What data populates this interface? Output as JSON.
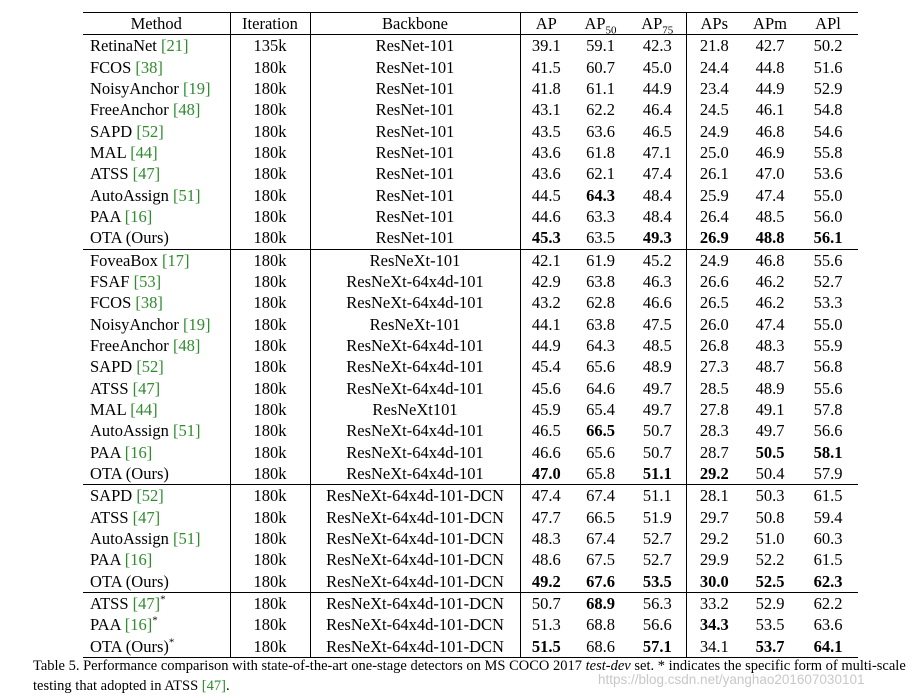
{
  "table": {
    "headers": {
      "method": "Method",
      "iteration": "Iteration",
      "backbone": "Backbone",
      "ap": "AP",
      "ap50_base": "AP",
      "ap50_sub": "50",
      "ap75_base": "AP",
      "ap75_sub": "75",
      "aps": "APs",
      "apm": "APm",
      "apl": "APl"
    },
    "groups": [
      [
        {
          "name": "RetinaNet ",
          "ref": "[21]",
          "star": "",
          "iter": "135k",
          "backbone": "ResNet-101",
          "ap": "39.1",
          "ap50": "59.1",
          "ap75": "42.3",
          "aps": "21.8",
          "apm": "42.7",
          "apl": "50.2",
          "bold": []
        },
        {
          "name": "FCOS ",
          "ref": "[38]",
          "star": "",
          "iter": "180k",
          "backbone": "ResNet-101",
          "ap": "41.5",
          "ap50": "60.7",
          "ap75": "45.0",
          "aps": "24.4",
          "apm": "44.8",
          "apl": "51.6",
          "bold": []
        },
        {
          "name": "NoisyAnchor ",
          "ref": "[19]",
          "star": "",
          "iter": "180k",
          "backbone": "ResNet-101",
          "ap": "41.8",
          "ap50": "61.1",
          "ap75": "44.9",
          "aps": "23.4",
          "apm": "44.9",
          "apl": "52.9",
          "bold": []
        },
        {
          "name": "FreeAnchor ",
          "ref": "[48]",
          "star": "",
          "iter": "180k",
          "backbone": "ResNet-101",
          "ap": "43.1",
          "ap50": "62.2",
          "ap75": "46.4",
          "aps": "24.5",
          "apm": "46.1",
          "apl": "54.8",
          "bold": []
        },
        {
          "name": "SAPD ",
          "ref": "[52]",
          "star": "",
          "iter": "180k",
          "backbone": "ResNet-101",
          "ap": "43.5",
          "ap50": "63.6",
          "ap75": "46.5",
          "aps": "24.9",
          "apm": "46.8",
          "apl": "54.6",
          "bold": []
        },
        {
          "name": "MAL ",
          "ref": "[44]",
          "star": "",
          "iter": "180k",
          "backbone": "ResNet-101",
          "ap": "43.6",
          "ap50": "61.8",
          "ap75": "47.1",
          "aps": "25.0",
          "apm": "46.9",
          "apl": "55.8",
          "bold": []
        },
        {
          "name": "ATSS ",
          "ref": "[47]",
          "star": "",
          "iter": "180k",
          "backbone": "ResNet-101",
          "ap": "43.6",
          "ap50": "62.1",
          "ap75": "47.4",
          "aps": "26.1",
          "apm": "47.0",
          "apl": "53.6",
          "bold": []
        },
        {
          "name": "AutoAssign ",
          "ref": "[51]",
          "star": "",
          "iter": "180k",
          "backbone": "ResNet-101",
          "ap": "44.5",
          "ap50": "64.3",
          "ap75": "48.4",
          "aps": "25.9",
          "apm": "47.4",
          "apl": "55.0",
          "bold": [
            "ap50"
          ]
        },
        {
          "name": "PAA ",
          "ref": "[16]",
          "star": "",
          "iter": "180k",
          "backbone": "ResNet-101",
          "ap": "44.6",
          "ap50": "63.3",
          "ap75": "48.4",
          "aps": "26.4",
          "apm": "48.5",
          "apl": "56.0",
          "bold": []
        },
        {
          "name": "OTA (Ours)",
          "ref": "",
          "star": "",
          "iter": "180k",
          "backbone": "ResNet-101",
          "ap": "45.3",
          "ap50": "63.5",
          "ap75": "49.3",
          "aps": "26.9",
          "apm": "48.8",
          "apl": "56.1",
          "bold": [
            "ap",
            "ap75",
            "aps",
            "apm",
            "apl"
          ]
        }
      ],
      [
        {
          "name": "FoveaBox ",
          "ref": "[17]",
          "star": "",
          "iter": "180k",
          "backbone": "ResNeXt-101",
          "ap": "42.1",
          "ap50": "61.9",
          "ap75": "45.2",
          "aps": "24.9",
          "apm": "46.8",
          "apl": "55.6",
          "bold": []
        },
        {
          "name": "FSAF ",
          "ref": "[53]",
          "star": "",
          "iter": "180k",
          "backbone": "ResNeXt-64x4d-101",
          "ap": "42.9",
          "ap50": "63.8",
          "ap75": "46.3",
          "aps": "26.6",
          "apm": "46.2",
          "apl": "52.7",
          "bold": []
        },
        {
          "name": "FCOS ",
          "ref": "[38]",
          "star": "",
          "iter": "180k",
          "backbone": "ResNeXt-64x4d-101",
          "ap": "43.2",
          "ap50": "62.8",
          "ap75": "46.6",
          "aps": "26.5",
          "apm": "46.2",
          "apl": "53.3",
          "bold": []
        },
        {
          "name": "NoisyAnchor ",
          "ref": "[19]",
          "star": "",
          "iter": "180k",
          "backbone": "ResNeXt-101",
          "ap": "44.1",
          "ap50": "63.8",
          "ap75": "47.5",
          "aps": "26.0",
          "apm": "47.4",
          "apl": "55.0",
          "bold": []
        },
        {
          "name": "FreeAnchor ",
          "ref": "[48]",
          "star": "",
          "iter": "180k",
          "backbone": "ResNeXt-64x4d-101",
          "ap": "44.9",
          "ap50": "64.3",
          "ap75": "48.5",
          "aps": "26.8",
          "apm": "48.3",
          "apl": "55.9",
          "bold": []
        },
        {
          "name": "SAPD ",
          "ref": "[52]",
          "star": "",
          "iter": "180k",
          "backbone": "ResNeXt-64x4d-101",
          "ap": "45.4",
          "ap50": "65.6",
          "ap75": "48.9",
          "aps": "27.3",
          "apm": "48.7",
          "apl": "56.8",
          "bold": []
        },
        {
          "name": "ATSS ",
          "ref": "[47]",
          "star": "",
          "iter": "180k",
          "backbone": "ResNeXt-64x4d-101",
          "ap": "45.6",
          "ap50": "64.6",
          "ap75": "49.7",
          "aps": "28.5",
          "apm": "48.9",
          "apl": "55.6",
          "bold": []
        },
        {
          "name": "MAL ",
          "ref": "[44]",
          "star": "",
          "iter": "180k",
          "backbone": "ResNeXt101",
          "ap": "45.9",
          "ap50": "65.4",
          "ap75": "49.7",
          "aps": "27.8",
          "apm": "49.1",
          "apl": "57.8",
          "bold": []
        },
        {
          "name": "AutoAssign ",
          "ref": "[51]",
          "star": "",
          "iter": "180k",
          "backbone": "ResNeXt-64x4d-101",
          "ap": "46.5",
          "ap50": "66.5",
          "ap75": "50.7",
          "aps": "28.3",
          "apm": "49.7",
          "apl": "56.6",
          "bold": [
            "ap50"
          ]
        },
        {
          "name": "PAA ",
          "ref": "[16]",
          "star": "",
          "iter": "180k",
          "backbone": "ResNeXt-64x4d-101",
          "ap": "46.6",
          "ap50": "65.6",
          "ap75": "50.7",
          "aps": "28.7",
          "apm": "50.5",
          "apl": "58.1",
          "bold": [
            "apm",
            "apl"
          ]
        },
        {
          "name": "OTA (Ours)",
          "ref": "",
          "star": "",
          "iter": "180k",
          "backbone": "ResNeXt-64x4d-101",
          "ap": "47.0",
          "ap50": "65.8",
          "ap75": "51.1",
          "aps": "29.2",
          "apm": "50.4",
          "apl": "57.9",
          "bold": [
            "ap",
            "ap75",
            "aps"
          ]
        }
      ],
      [
        {
          "name": "SAPD ",
          "ref": "[52]",
          "star": "",
          "iter": "180k",
          "backbone": "ResNeXt-64x4d-101-DCN",
          "ap": "47.4",
          "ap50": "67.4",
          "ap75": "51.1",
          "aps": "28.1",
          "apm": "50.3",
          "apl": "61.5",
          "bold": []
        },
        {
          "name": "ATSS ",
          "ref": "[47]",
          "star": "",
          "iter": "180k",
          "backbone": "ResNeXt-64x4d-101-DCN",
          "ap": "47.7",
          "ap50": "66.5",
          "ap75": "51.9",
          "aps": "29.7",
          "apm": "50.8",
          "apl": "59.4",
          "bold": []
        },
        {
          "name": "AutoAssign ",
          "ref": "[51]",
          "star": "",
          "iter": "180k",
          "backbone": "ResNeXt-64x4d-101-DCN",
          "ap": "48.3",
          "ap50": "67.4",
          "ap75": "52.7",
          "aps": "29.2",
          "apm": "51.0",
          "apl": "60.3",
          "bold": []
        },
        {
          "name": "PAA ",
          "ref": "[16]",
          "star": "",
          "iter": "180k",
          "backbone": "ResNeXt-64x4d-101-DCN",
          "ap": "48.6",
          "ap50": "67.5",
          "ap75": "52.7",
          "aps": "29.9",
          "apm": "52.2",
          "apl": "61.5",
          "bold": []
        },
        {
          "name": "OTA (Ours)",
          "ref": "",
          "star": "",
          "iter": "180k",
          "backbone": "ResNeXt-64x4d-101-DCN",
          "ap": "49.2",
          "ap50": "67.6",
          "ap75": "53.5",
          "aps": "30.0",
          "apm": "52.5",
          "apl": "62.3",
          "bold": [
            "ap",
            "ap50",
            "ap75",
            "aps",
            "apm",
            "apl"
          ]
        }
      ],
      [
        {
          "name": "ATSS ",
          "ref": "[47]",
          "star": "*",
          "iter": "180k",
          "backbone": "ResNeXt-64x4d-101-DCN",
          "ap": "50.7",
          "ap50": "68.9",
          "ap75": "56.3",
          "aps": "33.2",
          "apm": "52.9",
          "apl": "62.2",
          "bold": [
            "ap50"
          ]
        },
        {
          "name": "PAA ",
          "ref": "[16]",
          "star": "*",
          "iter": "180k",
          "backbone": "ResNeXt-64x4d-101-DCN",
          "ap": "51.3",
          "ap50": "68.8",
          "ap75": "56.6",
          "aps": "34.3",
          "apm": "53.5",
          "apl": "63.6",
          "bold": [
            "aps"
          ]
        },
        {
          "name": "OTA (Ours)",
          "ref": "",
          "star": "*",
          "iter": "180k",
          "backbone": "ResNeXt-64x4d-101-DCN",
          "ap": "51.5",
          "ap50": "68.6",
          "ap75": "57.1",
          "aps": "34.1",
          "apm": "53.7",
          "apl": "64.1",
          "bold": [
            "ap",
            "ap75",
            "apm",
            "apl"
          ]
        }
      ]
    ]
  },
  "caption": {
    "prefix": "Table 5. Performance comparison with state-of-the-art one-stage detectors on MS COCO 2017 ",
    "italic": "test-dev",
    "middle": " set. * indicates the specific form of multi-scale testing that adopted in ATSS ",
    "ref": "[47]",
    "suffix": "."
  },
  "watermark": "https://blog.csdn.net/yanghao201607030101"
}
